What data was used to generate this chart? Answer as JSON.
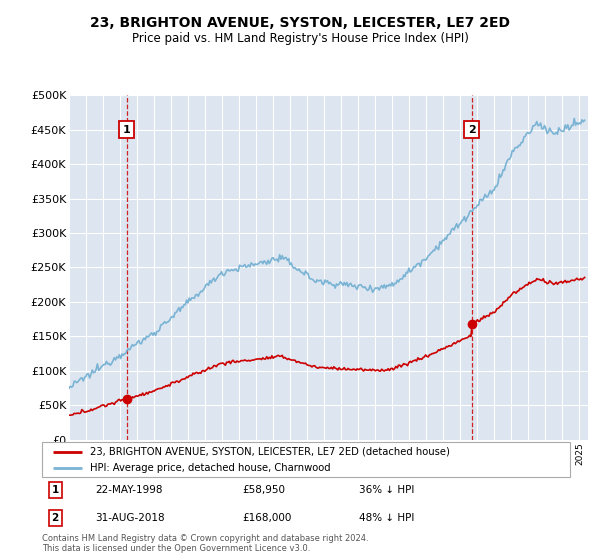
{
  "title": "23, BRIGHTON AVENUE, SYSTON, LEICESTER, LE7 2ED",
  "subtitle": "Price paid vs. HM Land Registry's House Price Index (HPI)",
  "legend_line1": "23, BRIGHTON AVENUE, SYSTON, LEICESTER, LE7 2ED (detached house)",
  "legend_line2": "HPI: Average price, detached house, Charnwood",
  "sale1_date": "22-MAY-1998",
  "sale1_price": 58950,
  "sale1_year": 1998.38,
  "sale2_date": "31-AUG-2018",
  "sale2_price": 168000,
  "sale2_year": 2018.66,
  "footer": "Contains HM Land Registry data © Crown copyright and database right 2024.\nThis data is licensed under the Open Government Licence v3.0.",
  "ylim": [
    0,
    500000
  ],
  "xlim_start": 1995.0,
  "xlim_end": 2025.5,
  "hpi_color": "#7ab3d4",
  "price_color": "#cc0000",
  "bg_color": "#dde6f0",
  "grid_color": "#ffffff",
  "marker_box_color": "#cc0000",
  "title_fontsize": 10,
  "subtitle_fontsize": 9
}
